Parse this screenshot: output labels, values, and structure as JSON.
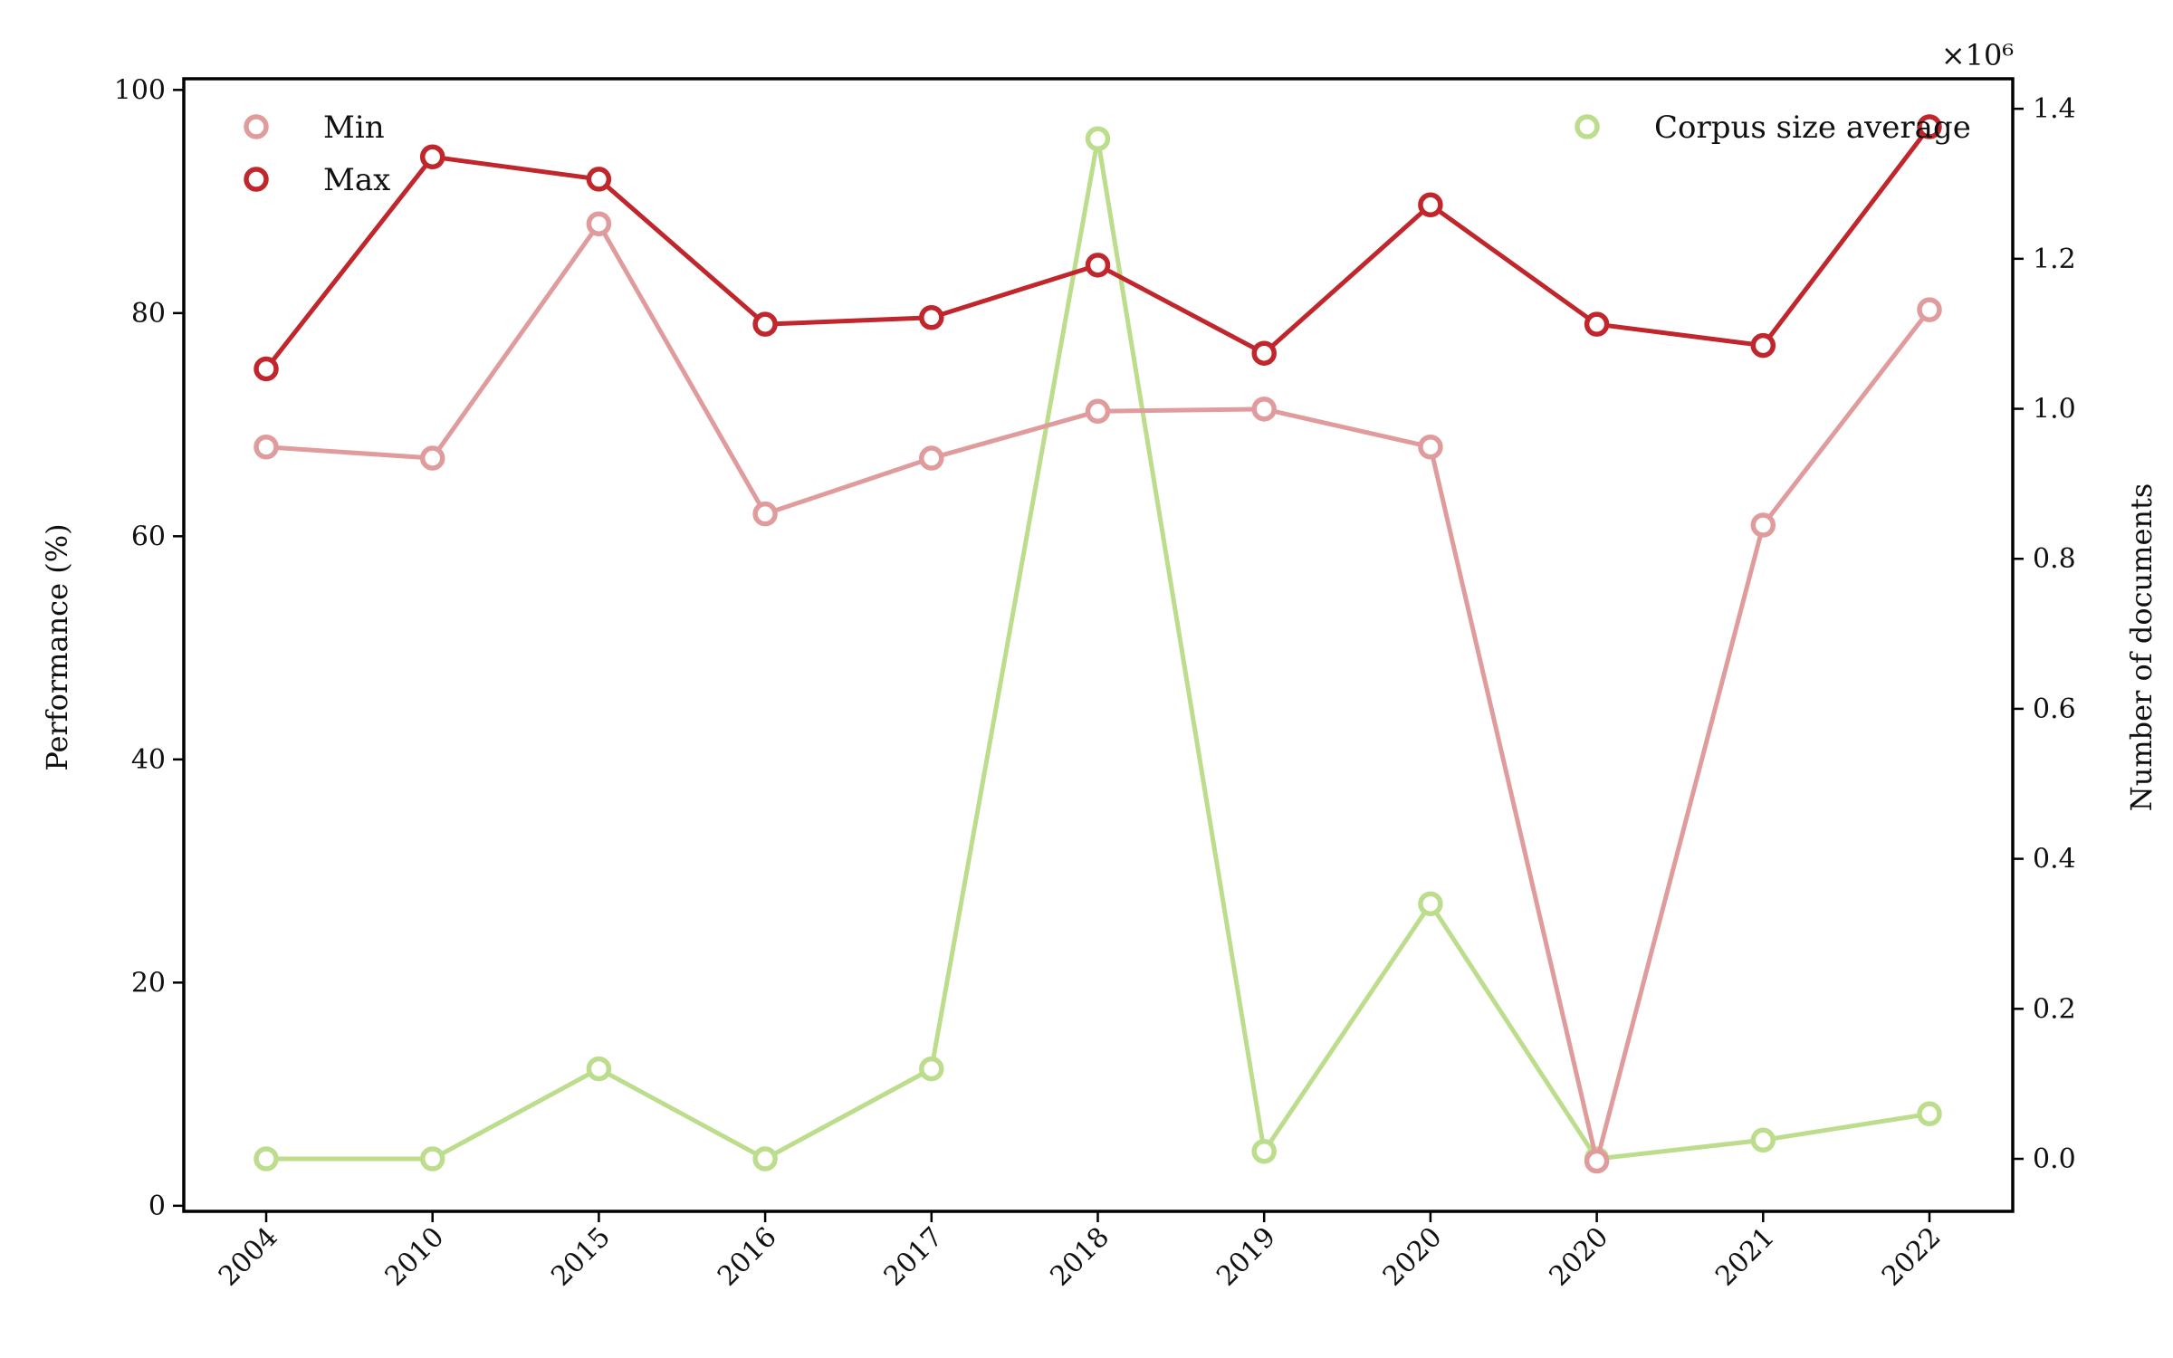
{
  "chart_data": {
    "type": "line",
    "categories": [
      "2004",
      "2010",
      "2015",
      "2016",
      "2017",
      "2018",
      "2019",
      "2020",
      "2020",
      "2021",
      "2022"
    ],
    "left_axis": {
      "label": "Performance (%)",
      "ylim": [
        -0.5,
        101
      ],
      "ticks": [
        0,
        20,
        40,
        60,
        80,
        100
      ],
      "tick_labels": [
        "0",
        "20",
        "40",
        "60",
        "80",
        "100"
      ]
    },
    "right_axis": {
      "label": "Number of documents",
      "multiplier": "×10⁶",
      "ylim": [
        -0.07,
        1.44
      ],
      "ticks": [
        0.0,
        0.2,
        0.4,
        0.6,
        0.8,
        1.0,
        1.2,
        1.4
      ],
      "tick_labels": [
        "0.0",
        "0.2",
        "0.4",
        "0.6",
        "0.8",
        "1.0",
        "1.2",
        "1.4"
      ]
    },
    "series": [
      {
        "name": "Min",
        "axis": "left",
        "color": "#e09b9c",
        "values": [
          68,
          67,
          88,
          62,
          67,
          71.2,
          71.4,
          68,
          4,
          61,
          80.3
        ]
      },
      {
        "name": "Max",
        "axis": "left",
        "color": "#c0262b",
        "values": [
          75,
          94,
          92,
          79,
          79.6,
          84.3,
          76.4,
          89.7,
          79,
          77.1,
          96.7
        ]
      },
      {
        "name": "Corpus size average",
        "axis": "right",
        "color": "#bcdd8b",
        "values": [
          0.0,
          0.0,
          0.12,
          0.0,
          0.12,
          1.36,
          0.01,
          0.34,
          0.0,
          0.025,
          0.06
        ]
      }
    ],
    "legend_left": {
      "position": "upper-left",
      "entries": [
        "Min",
        "Max"
      ]
    },
    "legend_right": {
      "position": "upper-right",
      "entries": [
        "Corpus size average"
      ]
    },
    "grid": false
  }
}
